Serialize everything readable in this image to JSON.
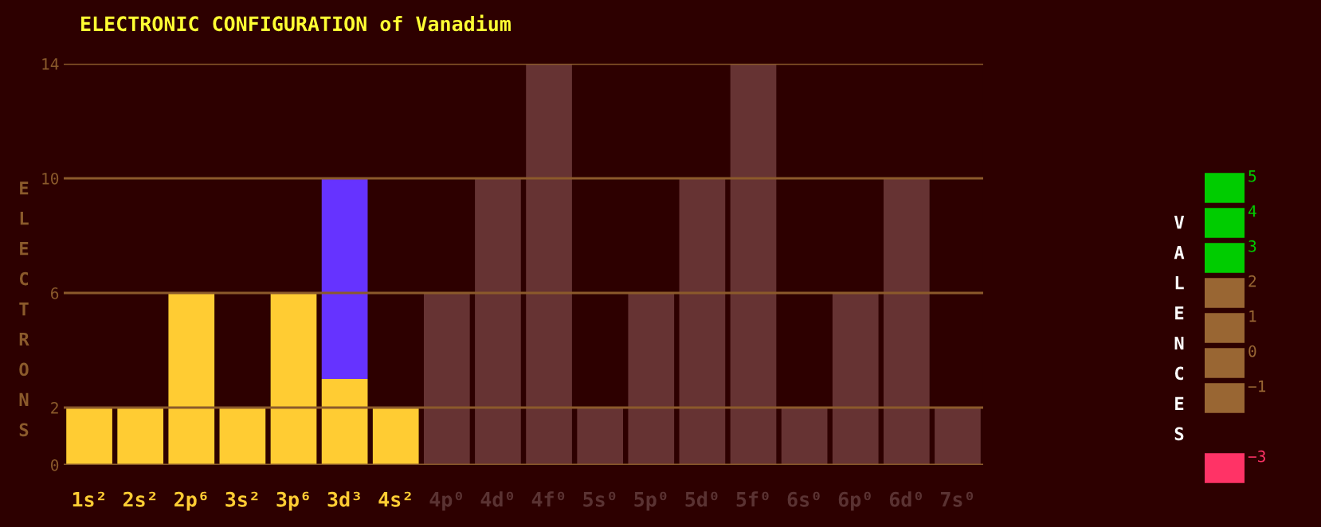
{
  "chart_data": [
    {
      "type": "bar",
      "title": "ELECTRONIC CONFIGURATION of Vanadium",
      "ylabel": "ELECTRONS",
      "stacked": true,
      "categories": [
        "1s²",
        "2s²",
        "2p⁶",
        "3s²",
        "3p⁶",
        "3d³",
        "4s²",
        "4p⁰",
        "4d⁰",
        "4f⁰",
        "5s⁰",
        "5p⁰",
        "5d⁰",
        "5f⁰",
        "6s⁰",
        "6p⁰",
        "6d⁰",
        "7s⁰"
      ],
      "series": [
        {
          "color": "#ffcc33",
          "values": [
            2,
            2,
            6,
            2,
            6,
            3,
            2,
            0,
            0,
            0,
            0,
            0,
            0,
            0,
            0,
            0,
            0,
            0
          ]
        },
        {
          "color": "#6633ff",
          "values": [
            0,
            0,
            0,
            0,
            0,
            7,
            0,
            0,
            0,
            0,
            0,
            0,
            0,
            0,
            0,
            0,
            0,
            0
          ]
        },
        {
          "color": "#663333",
          "values": [
            0,
            0,
            0,
            0,
            0,
            0,
            0,
            6,
            10,
            14,
            2,
            6,
            10,
            14,
            2,
            6,
            10,
            2
          ]
        }
      ],
      "ylim": [
        0,
        14
      ],
      "yticks": [
        0,
        2,
        6,
        10,
        14
      ],
      "grid": "y"
    },
    {
      "type": "other",
      "ylabel": "VALENCES",
      "categories": [
        "5",
        "4",
        "3",
        "2",
        "1",
        "0",
        "−1",
        null,
        "−3"
      ],
      "colors": [
        "#00cc00",
        "#00cc00",
        "#00cc00",
        "#996633",
        "#996633",
        "#996633",
        "#996633",
        null,
        "#ff3366"
      ]
    }
  ]
}
